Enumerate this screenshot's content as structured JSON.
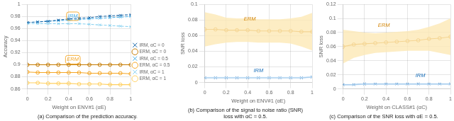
{
  "chart_data": [
    {
      "type": "line",
      "title": "(a) Comparison of the prediction accuracy.",
      "xlabel": "Weight on ENV#1 (αE)",
      "ylabel": "Accuracy",
      "x": [
        0,
        0.1,
        0.2,
        0.3,
        0.4,
        0.5,
        0.6,
        0.7,
        0.8,
        0.9,
        1.0
      ],
      "xlim": [
        0,
        1
      ],
      "xticks": [
        0,
        0.2,
        0.4,
        0.6,
        0.8,
        1
      ],
      "ylim": [
        0.86,
        1.0
      ],
      "yticks": [
        0.86,
        0.88,
        0.9,
        0.92,
        0.94,
        0.96,
        0.98,
        1.0
      ],
      "grid": true,
      "legend": "right",
      "series": [
        {
          "name": "IRM, αC = 0",
          "color": "#1565a8",
          "marker": "x",
          "line_style": "dashed",
          "values": [
            0.97,
            0.971,
            0.972,
            0.974,
            0.976,
            0.977,
            0.978,
            0.98,
            0.981,
            0.982,
            0.983
          ]
        },
        {
          "name": "ERM, αC = 0",
          "color": "#c47a00",
          "marker": "o",
          "line_style": "solid",
          "values": [
            0.9,
            0.9,
            0.9,
            0.9,
            0.9,
            0.9,
            0.9,
            0.9,
            0.9,
            0.9,
            0.9
          ]
        },
        {
          "name": "IRM, αC = 0.5",
          "color": "#4ab0e8",
          "marker": "x",
          "line_style": "dashed",
          "values": [
            0.97,
            0.971,
            0.972,
            0.973,
            0.974,
            0.975,
            0.976,
            0.977,
            0.978,
            0.979,
            0.98
          ]
        },
        {
          "name": "ERM, αC = 0.5",
          "color": "#f5a623",
          "marker": "o",
          "line_style": "solid",
          "values": [
            0.888,
            0.887,
            0.887,
            0.887,
            0.887,
            0.887,
            0.886,
            0.886,
            0.886,
            0.886,
            0.885
          ]
        },
        {
          "name": "IRM, αC = 1",
          "color": "#85d0f0",
          "marker": "x",
          "line_style": "dashed",
          "values": [
            0.968,
            0.968,
            0.968,
            0.968,
            0.968,
            0.968,
            0.967,
            0.966,
            0.965,
            0.964,
            0.963
          ]
        },
        {
          "name": "ERM, αC = 1",
          "color": "#ffd060",
          "marker": "o",
          "line_style": "solid",
          "values": [
            0.87,
            0.87,
            0.869,
            0.869,
            0.869,
            0.868,
            0.868,
            0.868,
            0.867,
            0.867,
            0.867
          ]
        }
      ],
      "annotations": [
        {
          "text": "IRM",
          "x": 0.44,
          "y": 0.978,
          "color": "#4ab0e8",
          "box_color": "#f5a623"
        },
        {
          "text": "ERM",
          "x": 0.44,
          "y": 0.906,
          "color": "#f5a623",
          "box_color": "#f5a623"
        }
      ]
    },
    {
      "type": "line",
      "title": [
        "(b) Comparison of the signal to noise ratio (SNR)",
        "loss with αC = 0.5."
      ],
      "xlabel": "Weight on ENV#1 (αE)",
      "ylabel": "SNR loss",
      "x": [
        0,
        0.1,
        0.2,
        0.3,
        0.4,
        0.5,
        0.6,
        0.7,
        0.8,
        0.9,
        1.0
      ],
      "xlim": [
        0,
        1
      ],
      "xticks": [
        0,
        0.2,
        0.4,
        0.6,
        0.8,
        1
      ],
      "ylim": [
        0,
        0.1
      ],
      "yticks": [
        0,
        0.02,
        0.04,
        0.06,
        0.08,
        0.1
      ],
      "grid": true,
      "series": [
        {
          "color": "#d4870a",
          "marker": "o",
          "line_style": "solid",
          "values": [
            0.068,
            0.068,
            0.067,
            0.067,
            0.067,
            0.066,
            0.066,
            0.066,
            0.066,
            0.065,
            0.065
          ],
          "band_lower": [
            0.046,
            0.049,
            0.051,
            0.052,
            0.052,
            0.051,
            0.051,
            0.051,
            0.05,
            0.046,
            0.041
          ],
          "band_upper": [
            0.09,
            0.087,
            0.083,
            0.082,
            0.082,
            0.081,
            0.081,
            0.081,
            0.082,
            0.084,
            0.089
          ],
          "band_color": "#fde8b5"
        },
        {
          "color": "#1a6fba",
          "marker": "x",
          "line_style": "solid",
          "values": [
            0.006,
            0.006,
            0.006,
            0.006,
            0.006,
            0.006,
            0.006,
            0.006,
            0.006,
            0.006,
            0.007
          ],
          "band_lower": [
            0.005,
            0.005,
            0.005,
            0.005,
            0.005,
            0.005,
            0.005,
            0.005,
            0.005,
            0.005,
            0.006
          ],
          "band_upper": [
            0.007,
            0.007,
            0.007,
            0.007,
            0.007,
            0.007,
            0.007,
            0.007,
            0.007,
            0.007,
            0.008
          ],
          "band_color": "#cce5fa"
        }
      ],
      "annotations": [
        {
          "text": "ERM",
          "x": 0.42,
          "y": 0.079,
          "color": "#d4870a"
        },
        {
          "text": "IRM",
          "x": 0.5,
          "y": 0.013,
          "color": "#1a6fba"
        }
      ]
    },
    {
      "type": "line",
      "title": "(c) Comparison of the SNR loss with αE = 0.5.",
      "xlabel": "Weight on CLASS#1 (αC)",
      "ylabel": "SNR loss",
      "x": [
        0,
        0.1,
        0.2,
        0.3,
        0.4,
        0.5,
        0.6,
        0.7,
        0.8,
        0.9,
        1.0
      ],
      "xlim": [
        0,
        1
      ],
      "xticks": [
        0,
        0.2,
        0.4,
        0.6,
        0.8,
        1
      ],
      "ylim": [
        0,
        0.12
      ],
      "yticks": [
        0,
        0.02,
        0.04,
        0.06,
        0.08,
        0.1,
        0.12
      ],
      "grid": true,
      "series": [
        {
          "color": "#d4870a",
          "marker": "o",
          "line_style": "solid",
          "values": [
            0.06,
            0.063,
            0.064,
            0.065,
            0.066,
            0.067,
            0.068,
            0.069,
            0.071,
            0.072,
            0.074
          ],
          "band_lower": [
            0.036,
            0.044,
            0.048,
            0.051,
            0.052,
            0.053,
            0.054,
            0.054,
            0.054,
            0.051,
            0.048
          ],
          "band_upper": [
            0.084,
            0.082,
            0.08,
            0.079,
            0.08,
            0.081,
            0.082,
            0.084,
            0.088,
            0.093,
            0.1
          ],
          "band_color": "#fde8b5"
        },
        {
          "color": "#1a6fba",
          "marker": "x",
          "line_style": "solid",
          "values": [
            0.006,
            0.006,
            0.007,
            0.007,
            0.007,
            0.007,
            0.007,
            0.007,
            0.007,
            0.007,
            0.007
          ],
          "band_lower": [
            0.005,
            0.005,
            0.006,
            0.006,
            0.006,
            0.006,
            0.006,
            0.006,
            0.006,
            0.006,
            0.006
          ],
          "band_upper": [
            0.007,
            0.007,
            0.008,
            0.008,
            0.008,
            0.008,
            0.008,
            0.008,
            0.008,
            0.008,
            0.008
          ],
          "band_color": "#cce5fa"
        }
      ],
      "annotations": [
        {
          "text": "ERM",
          "x": 0.38,
          "y": 0.088,
          "color": "#d4870a"
        },
        {
          "text": "IRM",
          "x": 0.72,
          "y": 0.017,
          "color": "#1a6fba"
        }
      ]
    }
  ]
}
